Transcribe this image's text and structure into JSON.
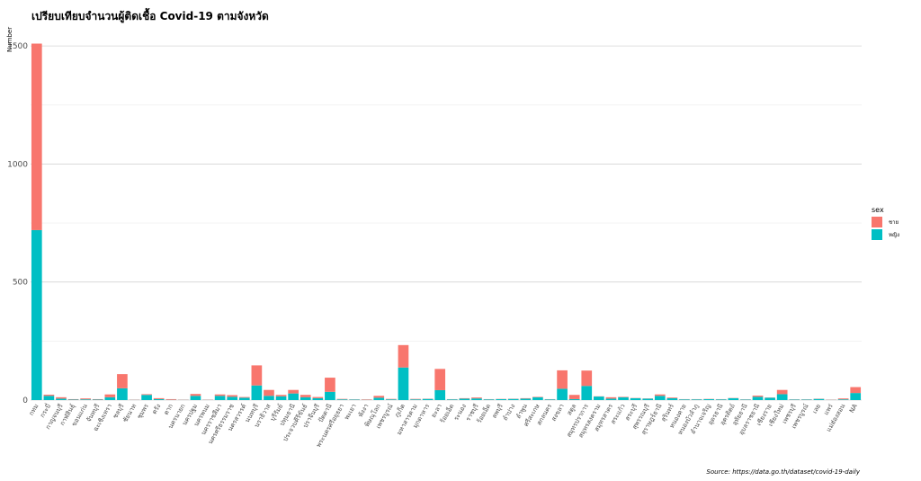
{
  "chart_data": {
    "type": "bar",
    "stacked": true,
    "title": "เปรียบเทียบจำนวนผู้ติดเชื้อ Covid-19 ตามจังหวัด",
    "ylabel": "Number",
    "xlabel": "",
    "ylim": [
      0,
      1550
    ],
    "yticks": [
      0,
      500,
      1000,
      1500
    ],
    "grid": true,
    "legend": {
      "title": "sex",
      "position": "right"
    },
    "caption": "Source: https://data.go.th/dataset/covid-19-daily",
    "colors": {
      "ชาย": "#F8766D",
      "หญิง": "#00BFC4"
    },
    "categories": [
      "กทม",
      "กระบี่",
      "กาญจนบุรี",
      "กาฬสินธุ์",
      "ขอนแก่น",
      "จันทบุรี",
      "ฉะเชิงเทรา",
      "ชลบุรี",
      "ชัยนาท",
      "ชุมพร",
      "ตรัง",
      "ตาก",
      "นครนายก",
      "นครปฐม",
      "นครพนม",
      "นครราชสีมา",
      "นครศรีธรรมราช",
      "นครสวรรค์",
      "นนทบุรี",
      "นราธิวาส",
      "บุรีรัมย์",
      "ปทุมธานี",
      "ประจวบคีรีขันธ์",
      "ปราจีนบุรี",
      "ปัตตานี",
      "พระนครศรีอยุธยา",
      "พะเยา",
      "พังงา",
      "พิษณุโลก",
      "เพชรบูรณ์",
      "ภูเก็ต",
      "มหาสารคาม",
      "มุกดาหาร",
      "ยะลา",
      "ร้อยเอ็ด",
      "ระนอง",
      "ราชบุรี",
      "ร้อยเอ็ด",
      "ลพบุรี",
      "ลำปาง",
      "ลำพูน",
      "ศรีสะเกษ",
      "สกลนคร",
      "สงขลา",
      "สตูล",
      "สมุทรปราการ",
      "สมุทรสงคราม",
      "สมุทรสาคร",
      "สระแก้ว",
      "สระบุรี",
      "สุพรรณบุรี",
      "สุราษฎร์ธานี",
      "สุรินทร์",
      "หนองคาย",
      "หนองบัวลำภู",
      "อำนาจเจริญ",
      "อุดรธานี",
      "อุตรดิตถ์",
      "อุทัยธานี",
      "อุบลราชธานี",
      "เชียงราย",
      "เชียงใหม่",
      "เพชรบุรี",
      "เพชรบูรณ์",
      "เลย",
      "แพร่",
      "แม่ฮ่องสอน",
      "NA"
    ],
    "series": [
      {
        "name": "ชาย",
        "values": [
          790,
          5,
          6,
          2,
          4,
          2,
          12,
          60,
          1,
          3,
          4,
          3,
          1,
          8,
          1,
          6,
          7,
          3,
          85,
          25,
          6,
          15,
          10,
          5,
          60,
          2,
          1,
          2,
          8,
          2,
          95,
          2,
          1,
          90,
          1,
          2,
          4,
          1,
          1,
          1,
          2,
          2,
          1,
          78,
          18,
          65,
          1,
          6,
          2,
          1,
          1,
          6,
          3,
          1,
          1,
          1,
          1,
          1,
          1,
          5,
          1,
          18,
          1,
          1,
          1,
          1,
          4,
          25
        ]
      },
      {
        "name": "หญิง",
        "values": [
          720,
          18,
          6,
          2,
          3,
          2,
          12,
          50,
          1,
          22,
          4,
          1,
          1,
          18,
          1,
          18,
          14,
          10,
          62,
          18,
          16,
          28,
          12,
          8,
          35,
          3,
          2,
          1,
          10,
          3,
          138,
          3,
          5,
          42,
          3,
          6,
          7,
          3,
          4,
          5,
          6,
          12,
          3,
          48,
          4,
          60,
          15,
          6,
          12,
          8,
          6,
          18,
          8,
          3,
          3,
          4,
          3,
          8,
          2,
          14,
          10,
          25,
          2,
          2,
          5,
          1,
          3,
          30
        ]
      }
    ]
  }
}
